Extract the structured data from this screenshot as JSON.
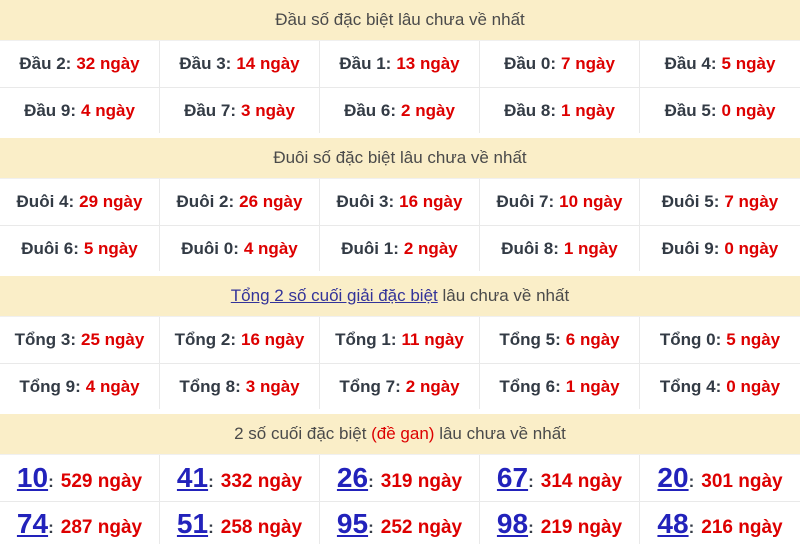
{
  "colors": {
    "header_bg": "#faeec8",
    "header_text": "#4a4a4a",
    "label_text": "#333b45",
    "value_red": "#dd0000",
    "link_navy": "#333399",
    "number_blue": "#2222bb",
    "border": "#e9e9e9"
  },
  "sections": [
    {
      "id": "dau",
      "title": "Đầu số đặc biệt lâu chưa về nhất",
      "rows": [
        [
          {
            "label": "Đầu 2:",
            "value": "32 ngày"
          },
          {
            "label": "Đầu 3:",
            "value": "14 ngày"
          },
          {
            "label": "Đầu 1:",
            "value": "13 ngày"
          },
          {
            "label": "Đầu 0:",
            "value": "7 ngày"
          },
          {
            "label": "Đầu 4:",
            "value": "5 ngày"
          }
        ],
        [
          {
            "label": "Đầu 9:",
            "value": "4 ngày"
          },
          {
            "label": "Đầu 7:",
            "value": "3 ngày"
          },
          {
            "label": "Đầu 6:",
            "value": "2 ngày"
          },
          {
            "label": "Đầu 8:",
            "value": "1 ngày"
          },
          {
            "label": "Đầu 5:",
            "value": "0 ngày"
          }
        ]
      ]
    },
    {
      "id": "duoi",
      "title": "Đuôi số đặc biệt lâu chưa về nhất",
      "rows": [
        [
          {
            "label": "Đuôi 4:",
            "value": "29 ngày"
          },
          {
            "label": "Đuôi 2:",
            "value": "26 ngày"
          },
          {
            "label": "Đuôi 3:",
            "value": "16 ngày"
          },
          {
            "label": "Đuôi 7:",
            "value": "10 ngày"
          },
          {
            "label": "Đuôi 5:",
            "value": "7 ngày"
          }
        ],
        [
          {
            "label": "Đuôi 6:",
            "value": "5 ngày"
          },
          {
            "label": "Đuôi 0:",
            "value": "4 ngày"
          },
          {
            "label": "Đuôi 1:",
            "value": "2 ngày"
          },
          {
            "label": "Đuôi 8:",
            "value": "1 ngày"
          },
          {
            "label": "Đuôi 9:",
            "value": "0 ngày"
          }
        ]
      ]
    },
    {
      "id": "tong",
      "title_link": "Tổng 2 số cuối giải đặc biệt",
      "title_rest": " lâu chưa về nhất",
      "rows": [
        [
          {
            "label": "Tổng 3:",
            "value": "25 ngày"
          },
          {
            "label": "Tổng 2:",
            "value": "16 ngày"
          },
          {
            "label": "Tổng 1:",
            "value": "11 ngày"
          },
          {
            "label": "Tổng 5:",
            "value": "6 ngày"
          },
          {
            "label": "Tổng 0:",
            "value": "5 ngày"
          }
        ],
        [
          {
            "label": "Tổng 9:",
            "value": "4 ngày"
          },
          {
            "label": "Tổng 8:",
            "value": "3 ngày"
          },
          {
            "label": "Tổng 7:",
            "value": "2 ngày"
          },
          {
            "label": "Tổng 6:",
            "value": "1 ngày"
          },
          {
            "label": "Tổng 4:",
            "value": "0 ngày"
          }
        ]
      ]
    },
    {
      "id": "gan",
      "title_pre": "2 số cuối đặc biệt ",
      "title_red": "(đề gan)",
      "title_post": " lâu chưa về nhất",
      "separator": ":",
      "rows": [
        [
          {
            "number": "10",
            "days": "529 ngày"
          },
          {
            "number": "41",
            "days": "332 ngày"
          },
          {
            "number": "26",
            "days": "319 ngày"
          },
          {
            "number": "67",
            "days": "314 ngày"
          },
          {
            "number": "20",
            "days": "301 ngày"
          }
        ],
        [
          {
            "number": "74",
            "days": "287 ngày"
          },
          {
            "number": "51",
            "days": "258 ngày"
          },
          {
            "number": "95",
            "days": "252 ngày"
          },
          {
            "number": "98",
            "days": "219 ngày"
          },
          {
            "number": "48",
            "days": "216 ngày"
          }
        ]
      ]
    }
  ]
}
